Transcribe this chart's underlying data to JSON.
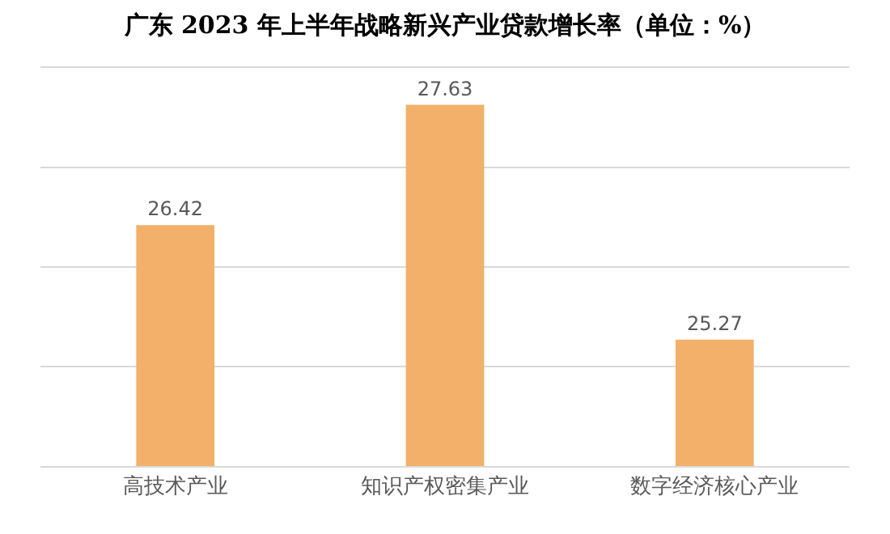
{
  "chart_data": {
    "type": "bar",
    "title": "广东 2023 年上半年战略新兴产业贷款增长率（单位：%）",
    "categories": [
      "高技术产业",
      "知识产权密集产业",
      "数字经济核心产业"
    ],
    "values": [
      26.42,
      27.63,
      25.27
    ],
    "color": "#f2b06a",
    "ylim": [
      24,
      28
    ],
    "yticks": [
      {
        "value": 24,
        "label": null
      },
      {
        "value": 25,
        "label": null
      },
      {
        "value": 26,
        "label": null
      },
      {
        "value": 27,
        "label": null
      },
      {
        "value": 28,
        "label": null
      }
    ],
    "grid": "y",
    "tick_labels": "x",
    "data_labels": true
  }
}
